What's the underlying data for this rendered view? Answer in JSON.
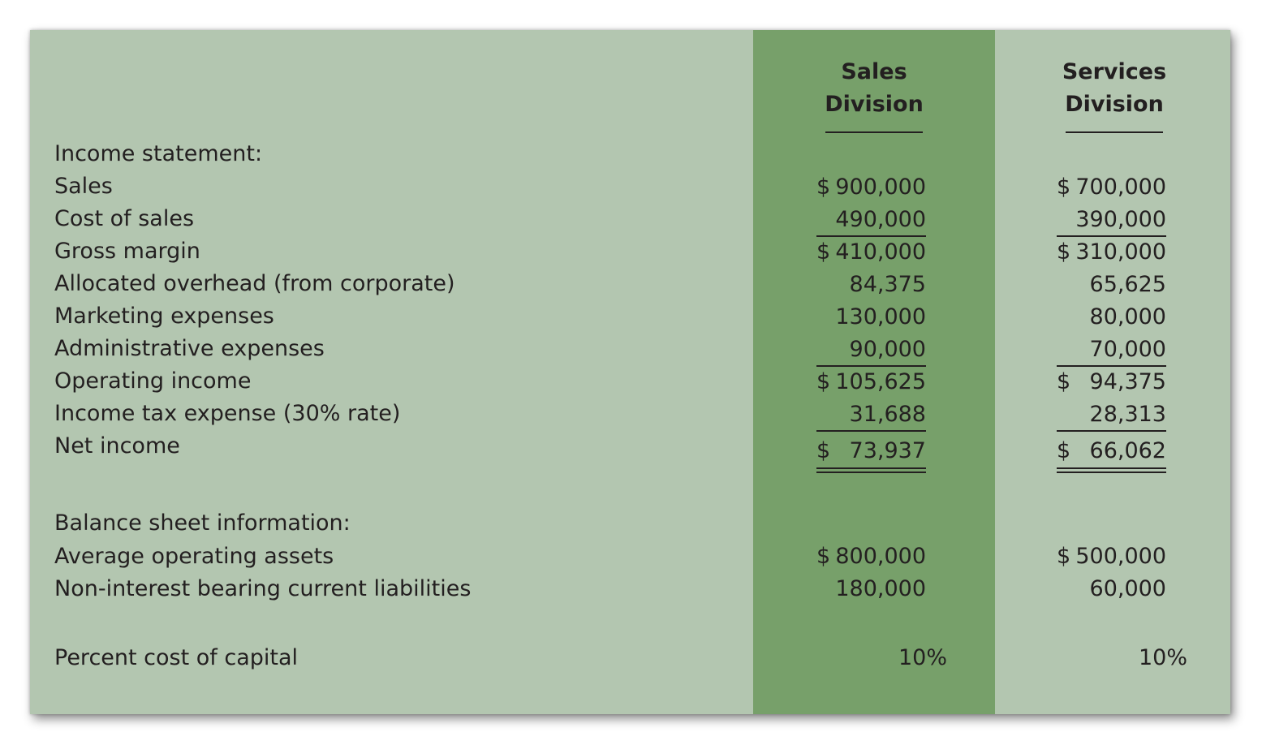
{
  "columns": {
    "sales": {
      "line1": "Sales",
      "line2": "Division"
    },
    "services": {
      "line1": "Services",
      "line2": "Division"
    }
  },
  "income_statement": {
    "heading": "Income statement:",
    "rows": [
      {
        "label": "Sales",
        "sales": "900,000",
        "services": "700,000",
        "sales_dollar": "$",
        "services_dollar": "$"
      },
      {
        "label": "Cost of sales",
        "sales": "490,000",
        "services": "390,000"
      },
      {
        "label": "Gross margin",
        "sales": "410,000",
        "services": "310,000",
        "sales_dollar": "$",
        "services_dollar": "$"
      },
      {
        "label": "Allocated overhead (from corporate)",
        "sales": "84,375",
        "services": "65,625"
      },
      {
        "label": "Marketing expenses",
        "sales": "130,000",
        "services": "80,000"
      },
      {
        "label": "Administrative expenses",
        "sales": "90,000",
        "services": "70,000"
      },
      {
        "label": "Operating income",
        "sales": "105,625",
        "services": "94,375",
        "sales_dollar": "$",
        "services_dollar": "$"
      },
      {
        "label": "Income tax expense (30% rate)",
        "sales": "31,688",
        "services": "28,313"
      },
      {
        "label": "Net income",
        "sales": "73,937",
        "services": "66,062",
        "sales_dollar": "$",
        "services_dollar": "$"
      }
    ]
  },
  "balance_sheet": {
    "heading": "Balance sheet information:",
    "rows": [
      {
        "label": "Average operating assets",
        "sales": "800,000",
        "services": "500,000",
        "sales_dollar": "$",
        "services_dollar": "$"
      },
      {
        "label": "Non-interest bearing current liabilities",
        "sales": "180,000",
        "services": "60,000"
      }
    ]
  },
  "cost_of_capital": {
    "label": "Percent cost of capital",
    "sales": "10%",
    "services": "10%"
  },
  "colors": {
    "panel": "#b3c6b0",
    "sales_band": "#77a06a",
    "text": "#231f20"
  }
}
